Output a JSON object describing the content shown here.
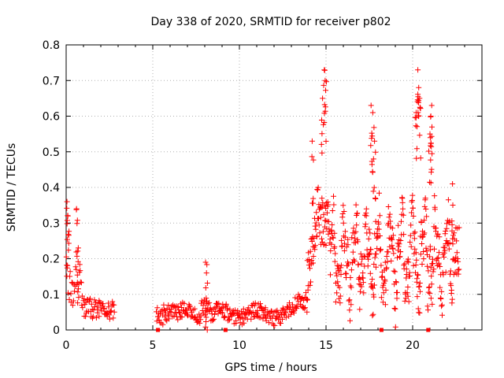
{
  "chart_data": {
    "type": "scatter",
    "title": "Day 338 of 2020, SRMTID for receiver p802",
    "xlabel": "GPS time / hours",
    "ylabel": "SRMTID / TECUs",
    "xlim": [
      0,
      24
    ],
    "ylim": [
      0,
      0.8
    ],
    "grid": true,
    "legend": "none",
    "x_ticks": [
      0,
      5,
      10,
      15,
      20
    ],
    "x_tick_labels": [
      "0",
      "5",
      "10",
      "15",
      "20"
    ],
    "y_ticks": [
      0,
      0.1,
      0.2,
      0.3,
      0.4,
      0.5,
      0.6,
      0.7,
      0.8
    ],
    "y_tick_labels": [
      "0",
      "0.1",
      "0.2",
      "0.3",
      "0.4",
      "0.5",
      "0.6",
      "0.7",
      "0.8"
    ],
    "marker": "+",
    "series_color": "#ff0000",
    "segments": [
      {
        "x_start": 0.0,
        "x_end": 2.8,
        "shape": "early",
        "base": 0.06,
        "max": 0.36
      },
      {
        "x_start": 5.2,
        "x_end": 13.9,
        "shape": "quiet",
        "base": 0.05,
        "max": 0.19
      },
      {
        "x_start": 13.9,
        "x_end": 22.7,
        "shape": "active",
        "base": 0.2,
        "max": 0.73
      }
    ],
    "peaks": [
      {
        "x": 0.05,
        "y": 0.36
      },
      {
        "x": 0.1,
        "y": 0.32
      },
      {
        "x": 0.6,
        "y": 0.34
      },
      {
        "x": 0.7,
        "y": 0.23
      },
      {
        "x": 8.05,
        "y": 0.19
      },
      {
        "x": 8.1,
        "y": 0.16
      },
      {
        "x": 14.2,
        "y": 0.53
      },
      {
        "x": 14.8,
        "y": 0.65
      },
      {
        "x": 14.9,
        "y": 0.73
      },
      {
        "x": 14.95,
        "y": 0.7
      },
      {
        "x": 17.6,
        "y": 0.63
      },
      {
        "x": 17.7,
        "y": 0.61
      },
      {
        "x": 17.8,
        "y": 0.53
      },
      {
        "x": 20.3,
        "y": 0.73
      },
      {
        "x": 20.35,
        "y": 0.68
      },
      {
        "x": 20.4,
        "y": 0.65
      },
      {
        "x": 20.2,
        "y": 0.61
      },
      {
        "x": 21.1,
        "y": 0.63
      },
      {
        "x": 21.05,
        "y": 0.6
      },
      {
        "x": 21.0,
        "y": 0.55
      },
      {
        "x": 22.3,
        "y": 0.41
      }
    ],
    "zero_markers": [
      5.3,
      9.2,
      18.2,
      20.9
    ]
  }
}
